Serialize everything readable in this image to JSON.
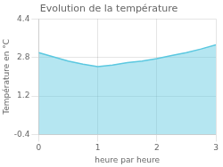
{
  "chart_data": {
    "type": "area",
    "title": "Evolution de la température",
    "x_label": "heure par heure",
    "y_label": "Température en °C",
    "x": [
      0,
      0.25,
      0.5,
      0.75,
      1.0,
      1.25,
      1.5,
      1.75,
      2.0,
      2.25,
      2.5,
      2.75,
      3.0
    ],
    "values": [
      3.0,
      2.82,
      2.65,
      2.52,
      2.42,
      2.48,
      2.58,
      2.65,
      2.75,
      2.88,
      3.0,
      3.15,
      3.32
    ],
    "color": "#5bc8e0",
    "xlim": [
      0,
      3
    ],
    "ylim": [
      -0.4,
      4.4
    ],
    "xticks": [
      0,
      1,
      2,
      3
    ],
    "yticks": [
      -0.4,
      1.2,
      2.8,
      4.4
    ],
    "grid": true
  }
}
